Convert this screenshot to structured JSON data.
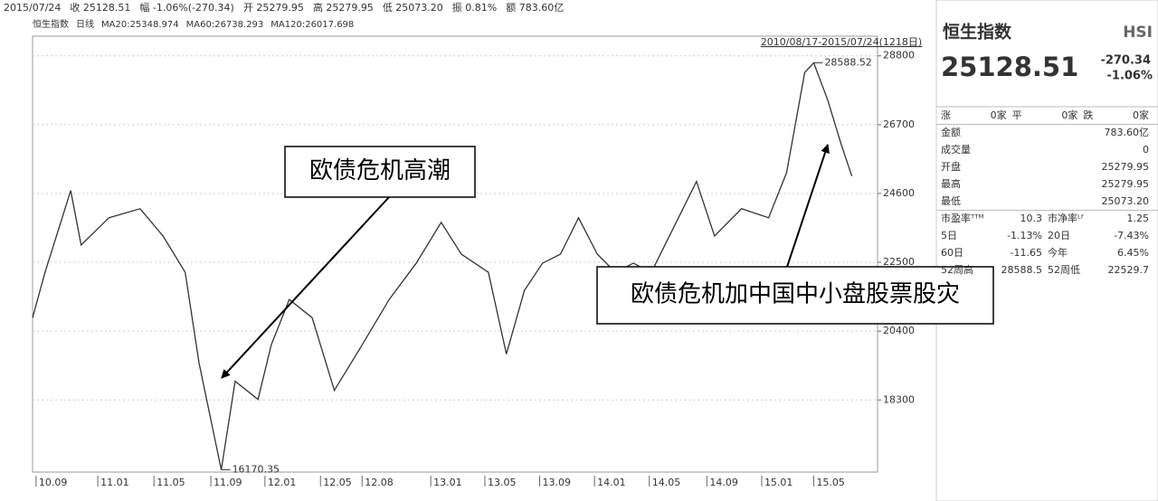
{
  "info_bar": [
    "2015/07/24",
    "收 25128.51",
    "幅 -1.06%(-270.34)",
    "开 25279.95",
    "高 25279.95",
    "低 25073.20",
    "振 0.81%",
    "额 783.60亿"
  ],
  "legend": [
    "恒生指数",
    "日线",
    "MA20:25348.974",
    "MA60:26738.293",
    "MA120:26017.698"
  ],
  "range": "2010/08/17-2015/07/24(1218日)",
  "chart_data": {
    "type": "line",
    "x": [
      0,
      18,
      55,
      70,
      110,
      155,
      188,
      220,
      240,
      272,
      292,
      325,
      344,
      370,
      403,
      435,
      475,
      514,
      553,
      589,
      618,
      657,
      683,
      709,
      735,
      761,
      787,
      814,
      840,
      866,
      892,
      918,
      957,
      983,
      1022,
      1061,
      1087,
      1113,
      1126,
      1146,
      1166,
      1181
    ],
    "series": [
      {
        "name": "恒生指数",
        "color": "#333333",
        "values": [
          20810,
          22196,
          24689,
          23027,
          23858,
          24135,
          23304,
          22196,
          19424,
          16170.35,
          18870,
          18316,
          19978,
          21364,
          20810,
          18593,
          19978,
          21364,
          22472,
          23719,
          22750,
          22196,
          19701,
          21641,
          22472,
          22750,
          23858,
          22750,
          22196,
          22472,
          22196,
          23304,
          24966,
          23304,
          24135,
          23858,
          25243,
          28292,
          28588.52,
          27460,
          26075,
          25128.51
        ]
      }
    ],
    "extremes": [
      {
        "x": 1126,
        "value": 28588.52
      },
      {
        "x": 272,
        "value": 16170.35
      }
    ],
    "xlim": [
      0,
      1218
    ],
    "ylim": [
      16100,
      29400
    ],
    "yticks": [
      18300,
      20400,
      22500,
      24600,
      26700,
      28800
    ],
    "xticks": [
      {
        "value": 5,
        "label": "10.09"
      },
      {
        "value": 94,
        "label": "11.01"
      },
      {
        "value": 175,
        "label": "11.05"
      },
      {
        "value": 257,
        "label": "11.09"
      },
      {
        "value": 335,
        "label": "12.01"
      },
      {
        "value": 415,
        "label": "12.05"
      },
      {
        "value": 475,
        "label": "12.08"
      },
      {
        "value": 574,
        "label": "13.01"
      },
      {
        "value": 652,
        "label": "13.05"
      },
      {
        "value": 731,
        "label": "13.09"
      },
      {
        "value": 810,
        "label": "14.01"
      },
      {
        "value": 889,
        "label": "14.05"
      },
      {
        "value": 972,
        "label": "14.09"
      },
      {
        "value": 1051,
        "label": "15.01"
      },
      {
        "value": 1126,
        "label": "15.05"
      }
    ],
    "annotations": [
      "欧债危机高潮",
      "欧债危机加中国中小盘股票股灾"
    ]
  },
  "panel": {
    "name": "恒生指数",
    "code": "HSI",
    "price": "25128.51",
    "change": "-270.34",
    "percent": "-1.06%",
    "rows": [
      [
        "涨",
        "0家",
        "平",
        "0家",
        "跌",
        "0家"
      ],
      [
        "金额",
        "783.60亿"
      ],
      [
        "成交量",
        "0"
      ],
      [
        "开盘",
        "25279.95"
      ],
      [
        "最高",
        "25279.95"
      ],
      [
        "最低",
        "25073.20"
      ],
      [
        "市盈率ᵀᵀᴹ",
        "10.3",
        "市净率ᴸᶠ",
        "1.25"
      ],
      [
        "5日",
        "-1.13%",
        "20日",
        "-7.43%"
      ],
      [
        "60日",
        "-11.65",
        "今年",
        "6.45%"
      ],
      [
        "52周高",
        "28588.5",
        "52周低",
        "22529.7"
      ]
    ]
  }
}
